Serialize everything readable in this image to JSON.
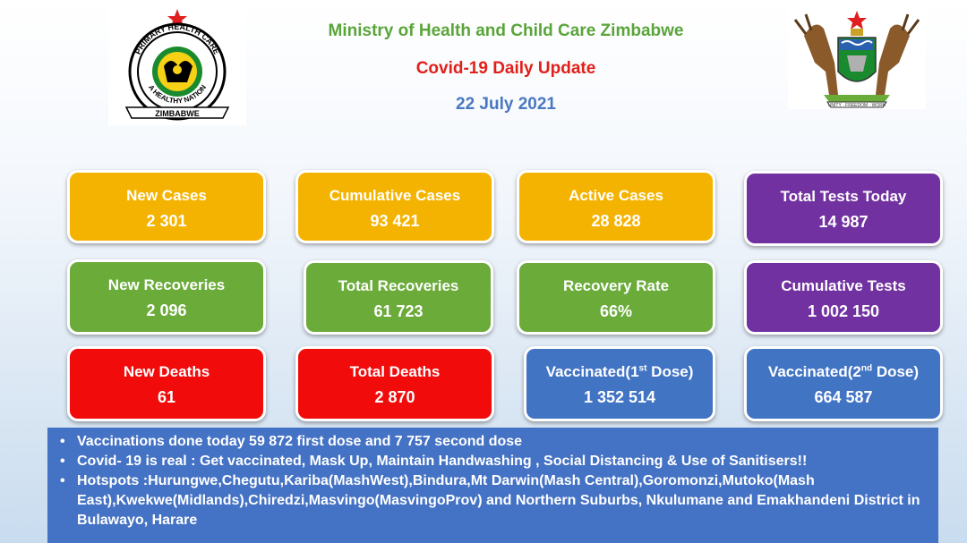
{
  "header": {
    "ministry": "Ministry of Health and Child Care Zimbabwe",
    "update": "Covid-19 Daily Update",
    "date": "22 July 2021"
  },
  "logos": {
    "left_ring_top": "PRIMARY HEALTH CARE",
    "left_ring_bottom": "A HEALTHY NATION",
    "left_ring_outer": "MINISTRY OF HEALTH AND CHILD CARE",
    "left_banner": "ZIMBABWE",
    "right_motto": "UNITY · FREEDOM · WORK"
  },
  "cards": {
    "new_cases": {
      "label": "New Cases",
      "value": "2 301"
    },
    "cumulative_cases": {
      "label": "Cumulative Cases",
      "value": "93 421"
    },
    "active_cases": {
      "label": "Active Cases",
      "value": "28 828"
    },
    "total_tests_today": {
      "label": "Total Tests Today",
      "value": "14 987"
    },
    "new_recoveries": {
      "label": "New Recoveries",
      "value": "2 096"
    },
    "total_recoveries": {
      "label": "Total Recoveries",
      "value": "61 723"
    },
    "recovery_rate": {
      "label": "Recovery Rate",
      "value": "66%"
    },
    "cumulative_tests": {
      "label": "Cumulative Tests",
      "value": "1 002 150"
    },
    "new_deaths": {
      "label": "New Deaths",
      "value": "61"
    },
    "total_deaths": {
      "label": "Total Deaths",
      "value": "2 870"
    },
    "vaccinated_1": {
      "label_pre": "Vaccinated(1",
      "label_sup": "st",
      "label_post": " Dose)",
      "value": "1 352 514"
    },
    "vaccinated_2": {
      "label_pre": "Vaccinated(2",
      "label_sup": "nd",
      "label_post": " Dose)",
      "value": "664 587"
    }
  },
  "colors": {
    "yellow": "#f5b301",
    "purple": "#7131a0",
    "green": "#6aab3a",
    "red": "#f20b0b",
    "blue": "#4274c4",
    "header_green": "#5aa53a",
    "header_red": "#e0201a",
    "header_blue": "#4a78c0"
  },
  "bullets": [
    "Vaccinations done today 59 872 first dose and 7 757 second dose",
    "Covid- 19 is real : Get vaccinated, Mask Up, Maintain Handwashing , Social Distancing & Use of Sanitisers!!",
    "Hotspots :Hurungwe,Chegutu,Kariba(MashWest),Bindura,Mt Darwin(Mash Central),Goromonzi,Mutoko(Mash East),Kwekwe(Midlands),Chiredzi,Masvingo(MasvingoProv) and Northern Suburbs, Nkulumane and Emakhandeni District in Bulawayo, Harare"
  ]
}
